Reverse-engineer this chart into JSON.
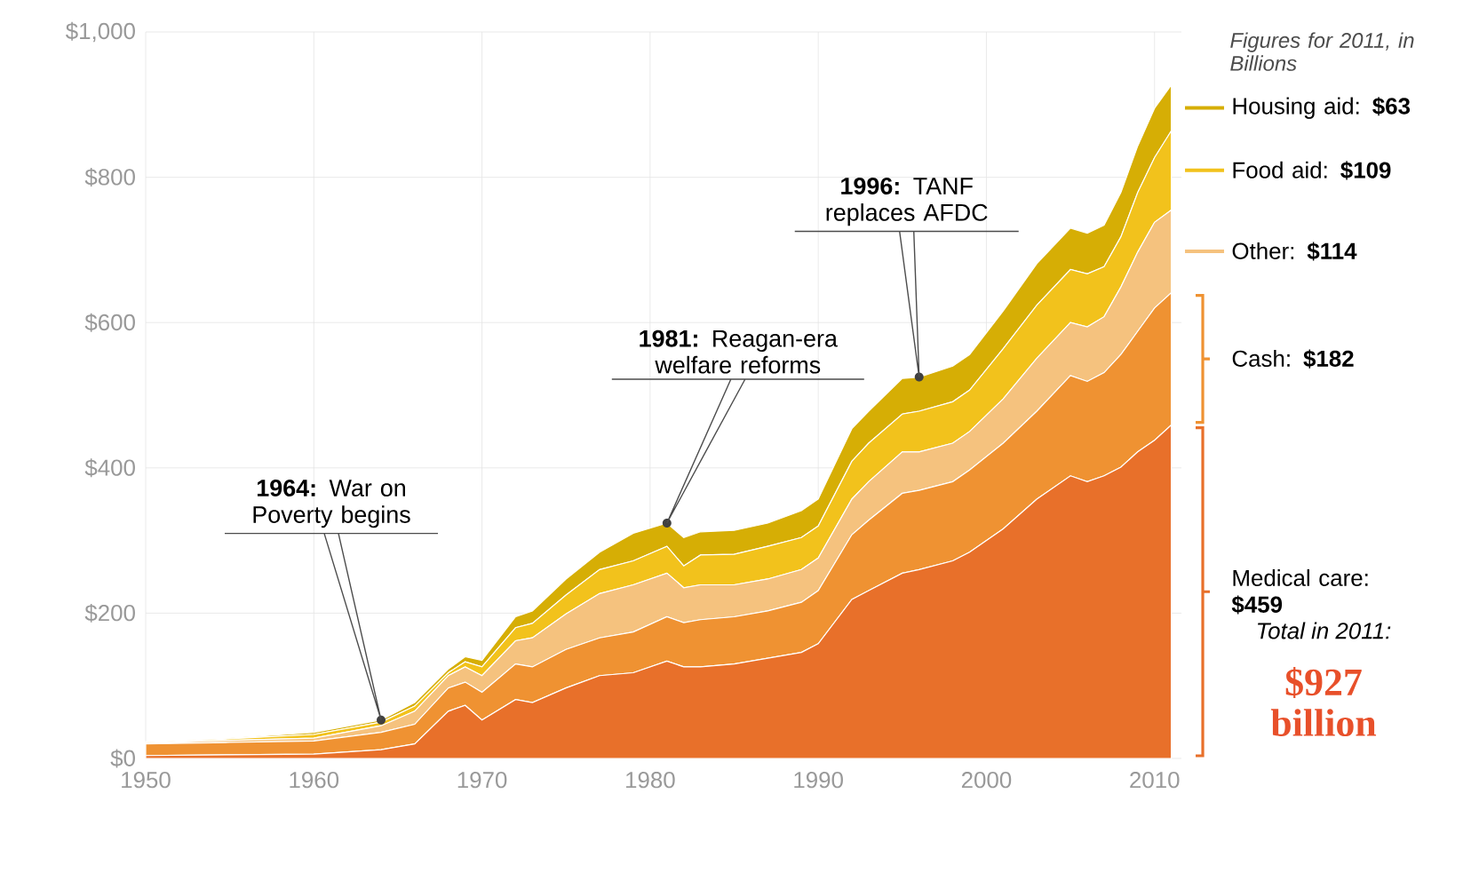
{
  "chart_data": {
    "type": "area",
    "stacked": true,
    "grid": true,
    "legend": "right",
    "x": [
      1950,
      1955,
      1960,
      1964,
      1966,
      1968,
      1969,
      1970,
      1972,
      1973,
      1975,
      1977,
      1979,
      1981,
      1982,
      1983,
      1985,
      1987,
      1989,
      1990,
      1992,
      1993,
      1995,
      1996,
      1998,
      1999,
      2001,
      2003,
      2005,
      2006,
      2007,
      2008,
      2009,
      2010,
      2011
    ],
    "xlim": [
      1950,
      2011.6
    ],
    "xticks": [
      1950,
      1960,
      1970,
      1980,
      1990,
      2000,
      2010
    ],
    "ylim": [
      0,
      1000
    ],
    "yticks": [
      {
        "value": 0,
        "label": "$0"
      },
      {
        "value": 200,
        "label": "$200"
      },
      {
        "value": 400,
        "label": "$400"
      },
      {
        "value": 600,
        "label": "$600"
      },
      {
        "value": 800,
        "label": "$800"
      },
      {
        "value": 1000,
        "label": "$1,000"
      }
    ],
    "series": [
      {
        "name": "Medical care: **$459**",
        "color": "#e8702a",
        "values": [
          4,
          5,
          6,
          12,
          20,
          65,
          73,
          53,
          81,
          77,
          97,
          114,
          118,
          134,
          126,
          126,
          130,
          138,
          146,
          158,
          219,
          231,
          255,
          260,
          272,
          284,
          316,
          357,
          389,
          381,
          389,
          401,
          422,
          438,
          459
        ]
      },
      {
        "name": "Cash: **$182**",
        "color": "#ef9232",
        "values": [
          16,
          17,
          18,
          24,
          27,
          32,
          32,
          38,
          49,
          49,
          53,
          52,
          56,
          61,
          61,
          65,
          65,
          65,
          69,
          73,
          89,
          97,
          110,
          109,
          109,
          113,
          118,
          121,
          138,
          138,
          142,
          155,
          166,
          182,
          182
        ]
      },
      {
        "name": "Other: **$114**",
        "color": "#f5c27e",
        "values": [
          1,
          3,
          4,
          9,
          18,
          17,
          21,
          23,
          32,
          40,
          49,
          61,
          65,
          60,
          48,
          48,
          44,
          44,
          45,
          45,
          49,
          53,
          57,
          53,
          53,
          53,
          61,
          73,
          73,
          75,
          77,
          93,
          109,
          118,
          114
        ]
      },
      {
        "name": "Food aid: **$109**",
        "color": "#f2c21c",
        "values": [
          1,
          2,
          5,
          5,
          7,
          4,
          7,
          12,
          18,
          20,
          26,
          33,
          33,
          37,
          30,
          41,
          42,
          45,
          44,
          44,
          52,
          53,
          52,
          56,
          57,
          57,
          69,
          73,
          73,
          73,
          69,
          69,
          82,
          89,
          109
        ]
      },
      {
        "name": "Housing aid: **$63**",
        "color": "#d6ae05",
        "values": [
          1,
          1,
          3,
          3,
          5,
          5,
          7,
          9,
          15,
          17,
          22,
          24,
          38,
          32,
          39,
          32,
          33,
          32,
          37,
          37,
          45,
          44,
          49,
          47,
          49,
          49,
          52,
          57,
          57,
          56,
          57,
          61,
          64,
          68,
          63
        ]
      }
    ],
    "annotations": [
      {
        "text": "**1964:** War on Poverty begins",
        "x": 1964,
        "y": 53
      },
      {
        "text": "**1981:** Reagan-era welfare reforms",
        "x": 1981,
        "y": 324
      },
      {
        "text": "**1996:** TANF replaces AFDC",
        "x": 1996,
        "y": 525
      },
      "Figures for 2011, in Billions",
      "Total in 2011:",
      "$927 billion"
    ]
  }
}
